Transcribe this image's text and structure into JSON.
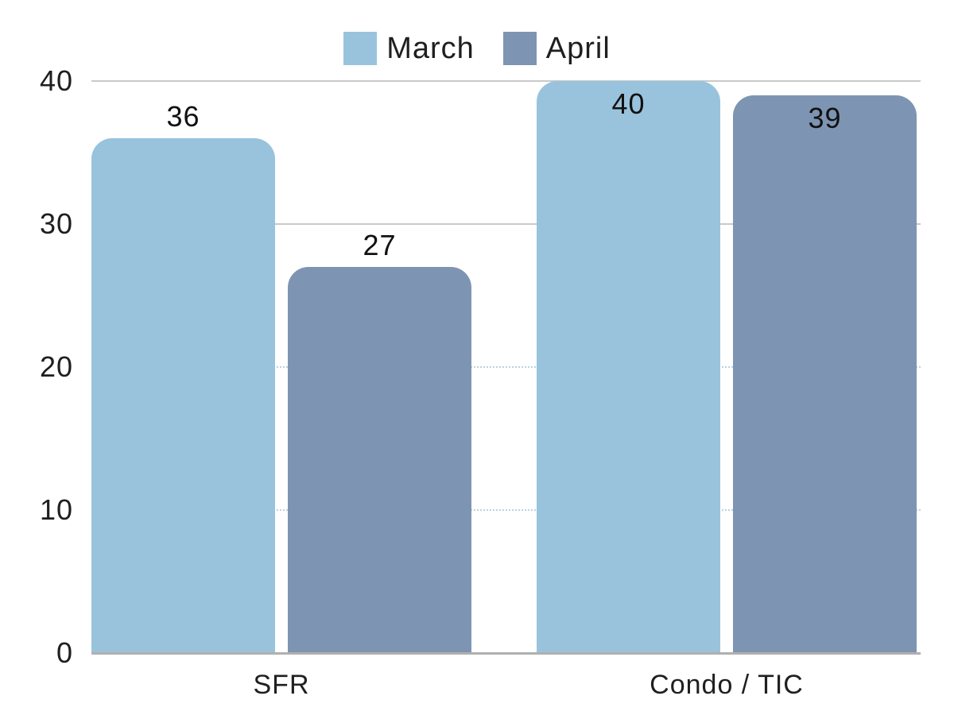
{
  "chart_data": {
    "type": "bar",
    "categories": [
      "SFR",
      "Condo / TIC"
    ],
    "series": [
      {
        "name": "March",
        "color": "#99C3DC",
        "values": [
          36,
          40
        ]
      },
      {
        "name": "April",
        "color": "#7E94B3",
        "values": [
          27,
          39
        ]
      }
    ],
    "title": "",
    "xlabel": "",
    "ylabel": "",
    "ylim": [
      0,
      40
    ],
    "yticks": [
      0,
      10,
      20,
      30,
      40
    ],
    "gridlines": [
      {
        "value": 10,
        "style": "dotted"
      },
      {
        "value": 20,
        "style": "dotted"
      },
      {
        "value": 30,
        "style": "solid"
      },
      {
        "value": 40,
        "style": "solid"
      }
    ],
    "legend_position": "top-center",
    "value_labels": true
  },
  "colors": {
    "series_march": "#99C3DC",
    "series_april": "#7E94B3",
    "text": "#1F1F1F",
    "gridline_solid": "#C9C9C9",
    "gridline_dotted": "#BCD2E0",
    "axis_baseline": "#B0B0B0",
    "background": "#FFFFFF"
  }
}
